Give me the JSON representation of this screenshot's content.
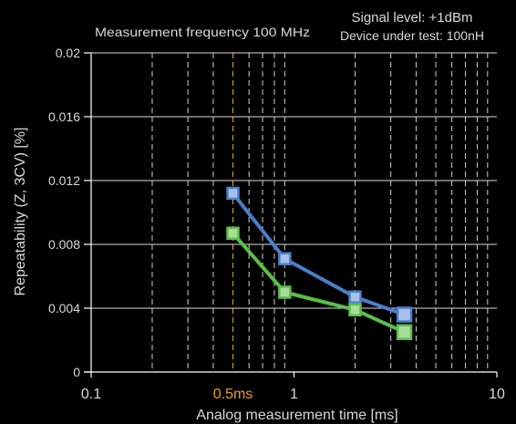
{
  "chart_data": {
    "type": "line",
    "annotations": {
      "frequency": "Measurement frequency  100 MHz",
      "signal_level": "Signal level: +1dBm",
      "device": "Device under test: 100nH"
    },
    "xlabel": "Analog measurement time [ms]",
    "ylabel": "Repeatability (Z, 3CV) [%]",
    "x_scale": "log",
    "xlim": [
      0.1,
      10
    ],
    "ylim": [
      0,
      0.02
    ],
    "x_ticks": [
      {
        "value": 0.1,
        "label": "0.1"
      },
      {
        "value": 1,
        "label": "1"
      },
      {
        "value": 10,
        "label": "10"
      }
    ],
    "y_ticks": [
      {
        "value": 0,
        "label": "0"
      },
      {
        "value": 0.004,
        "label": "0.004"
      },
      {
        "value": 0.008,
        "label": "0.008"
      },
      {
        "value": 0.012,
        "label": "0.012"
      },
      {
        "value": 0.016,
        "label": "0.016"
      },
      {
        "value": 0.02,
        "label": "0.02"
      }
    ],
    "grid": "vertical dashed at minor log ticks",
    "marker_line": {
      "x": 0.5,
      "label": "0.5ms",
      "color": "#e8a020"
    },
    "series": [
      {
        "color": "#4a7fc8",
        "marker_fill": "#a8c0e8",
        "x": [
          0.5,
          0.9,
          2.0,
          3.5
        ],
        "y": [
          0.0112,
          0.0071,
          0.0047,
          0.0036
        ]
      },
      {
        "color": "#5bbf4a",
        "marker_fill": "#a8dc98",
        "x": [
          0.5,
          0.9,
          2.0,
          3.5
        ],
        "y": [
          0.0087,
          0.005,
          0.0039,
          0.0025
        ]
      }
    ]
  }
}
